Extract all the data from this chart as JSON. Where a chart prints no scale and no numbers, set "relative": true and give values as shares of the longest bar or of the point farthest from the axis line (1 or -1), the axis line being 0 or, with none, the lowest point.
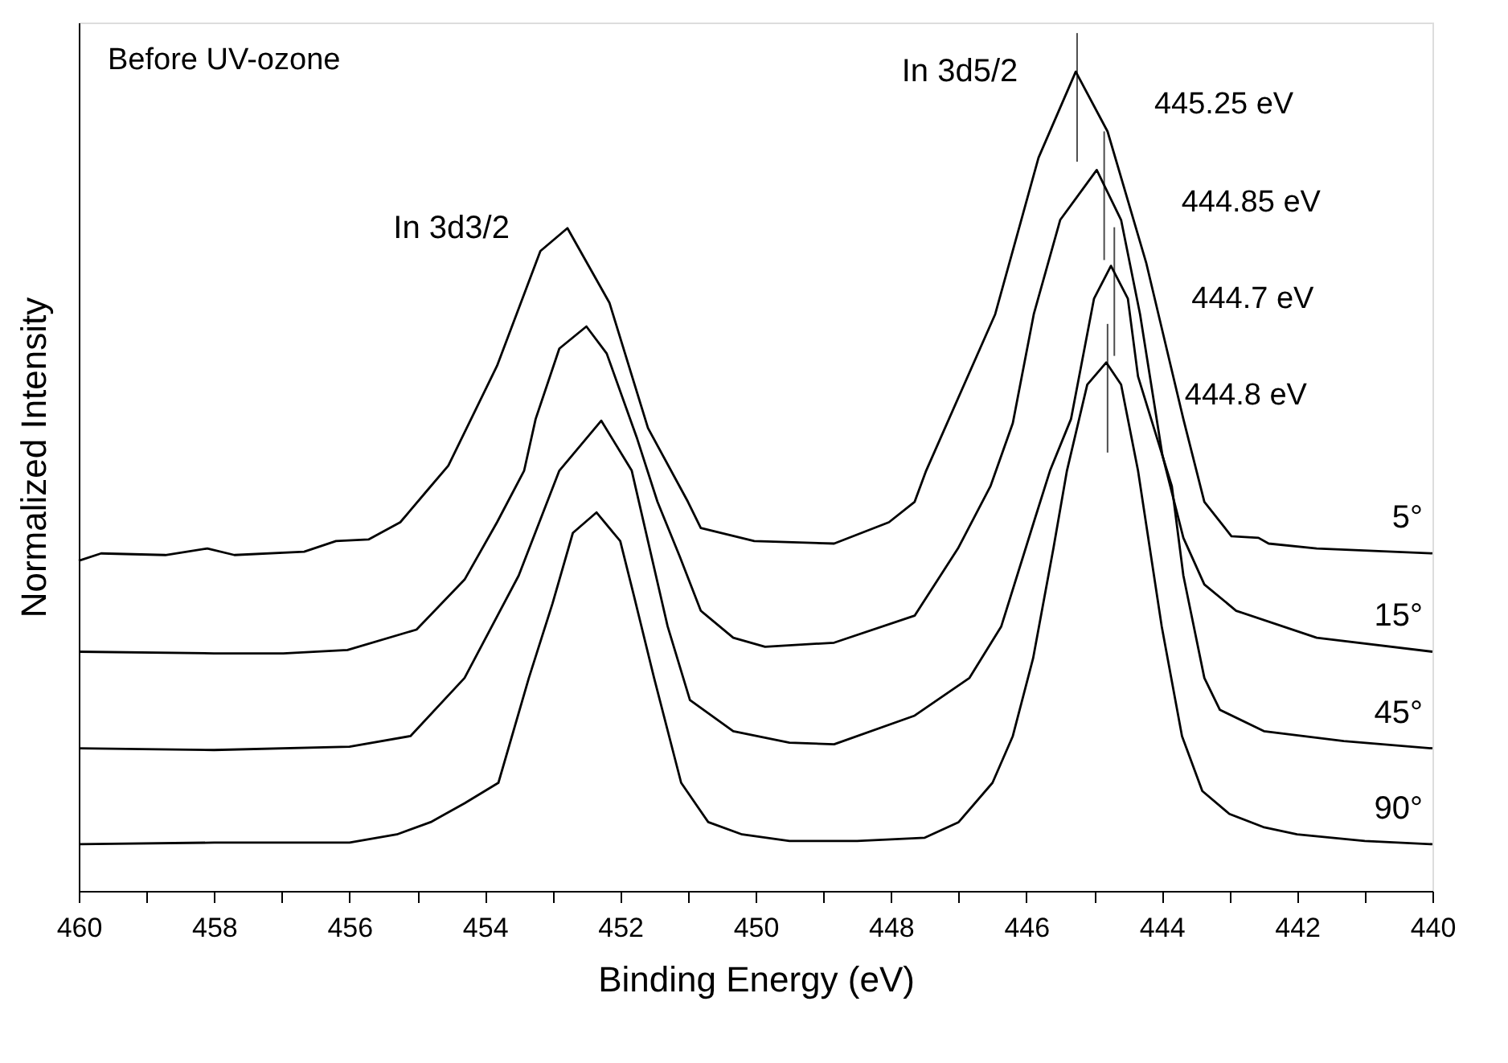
{
  "chart_data": {
    "type": "line",
    "xlabel": "Binding Energy (eV)",
    "ylabel": "Normalized Intensity",
    "relative": true,
    "legend": false,
    "grid": false,
    "line_style": "solid",
    "xlim": [
      460,
      440
    ],
    "xticks": [
      460,
      {
        "value": 459,
        "label": null
      },
      458,
      {
        "value": 457,
        "label": null
      },
      456,
      {
        "value": 455,
        "label": null
      },
      454,
      {
        "value": 453,
        "label": null
      },
      452,
      {
        "value": 451,
        "label": null
      },
      450,
      {
        "value": 449,
        "label": null
      },
      448,
      {
        "value": 447,
        "label": null
      },
      446,
      {
        "value": 445,
        "label": null
      },
      444,
      {
        "value": 443,
        "label": null
      },
      442,
      {
        "value": 441,
        "label": null
      },
      440
    ],
    "series": [
      {
        "name": "5°",
        "color": "#000000",
        "x": [
          460,
          459.67,
          458.72,
          458.1,
          457.7,
          456.67,
          456.2,
          455.72,
          455.25,
          454.85,
          454.54,
          453.82,
          453.18,
          452.78,
          452.16,
          451.59,
          451.0,
          450.81,
          450.02,
          448.84,
          448.03,
          447.65,
          447.48,
          446.46,
          445.82,
          445.27,
          444.8,
          444.23,
          443.68,
          443.37,
          442.97,
          442.57,
          442.42,
          441.71,
          440
        ],
        "values": [
          0.403,
          0.412,
          0.41,
          0.418,
          0.41,
          0.414,
          0.427,
          0.429,
          0.45,
          0.489,
          0.519,
          0.641,
          0.781,
          0.809,
          0.718,
          0.565,
          0.475,
          0.443,
          0.427,
          0.424,
          0.45,
          0.475,
          0.513,
          0.704,
          0.895,
          1,
          0.927,
          0.767,
          0.576,
          0.475,
          0.433,
          0.431,
          0.424,
          0.418,
          0.412
        ]
      },
      {
        "name": "15°",
        "color": "#000000",
        "x": [
          460,
          458,
          456.98,
          456.03,
          455.01,
          454.3,
          453.82,
          453.42,
          453.25,
          452.9,
          452.5,
          452.2,
          451.75,
          451.45,
          451.12,
          450.81,
          450.33,
          449.86,
          448.84,
          447.65,
          447.01,
          446.53,
          446.2,
          445.89,
          445.5,
          444.96,
          444.6,
          444.32,
          443.99,
          443.68,
          443.37,
          442.9,
          441.71,
          440
        ],
        "values": [
          0.292,
          0.29,
          0.29,
          0.294,
          0.319,
          0.38,
          0.45,
          0.513,
          0.576,
          0.662,
          0.689,
          0.656,
          0.552,
          0.475,
          0.408,
          0.342,
          0.309,
          0.298,
          0.303,
          0.336,
          0.418,
          0.494,
          0.571,
          0.704,
          0.819,
          0.88,
          0.819,
          0.704,
          0.532,
          0.431,
          0.374,
          0.342,
          0.309,
          0.292
        ]
      },
      {
        "name": "45°",
        "color": "#000000",
        "x": [
          460,
          458,
          456,
          455.1,
          454.3,
          453.5,
          452.9,
          452.28,
          451.83,
          451.3,
          450.97,
          450.33,
          449.5,
          448.84,
          447.65,
          446.84,
          446.37,
          445.89,
          445.65,
          445.34,
          445.0,
          444.75,
          444.5,
          444.35,
          444.1,
          443.85,
          443.68,
          443.37,
          443.14,
          442.49,
          441.31,
          440
        ],
        "values": [
          0.174,
          0.172,
          0.176,
          0.189,
          0.26,
          0.385,
          0.513,
          0.574,
          0.513,
          0.323,
          0.233,
          0.195,
          0.181,
          0.179,
          0.214,
          0.26,
          0.323,
          0.45,
          0.513,
          0.576,
          0.723,
          0.763,
          0.723,
          0.628,
          0.561,
          0.494,
          0.385,
          0.26,
          0.221,
          0.195,
          0.183,
          0.174
        ]
      },
      {
        "name": "90°",
        "color": "#000000",
        "x": [
          460,
          458,
          456,
          455.3,
          454.8,
          454.3,
          453.8,
          453.35,
          453,
          452.7,
          452.35,
          452.0,
          451.8,
          451.5,
          451.1,
          450.7,
          450.2,
          449.5,
          448.5,
          447.5,
          447,
          446.5,
          446.2,
          445.9,
          445.6,
          445.4,
          445.1,
          444.82,
          444.6,
          444.35,
          444.0,
          443.7,
          443.4,
          443,
          442.5,
          442,
          441,
          440
        ],
        "values": [
          0.057,
          0.059,
          0.059,
          0.069,
          0.084,
          0.107,
          0.132,
          0.26,
          0.351,
          0.437,
          0.462,
          0.427,
          0.361,
          0.26,
          0.132,
          0.084,
          0.069,
          0.061,
          0.061,
          0.065,
          0.084,
          0.132,
          0.189,
          0.284,
          0.418,
          0.513,
          0.618,
          0.645,
          0.618,
          0.513,
          0.323,
          0.189,
          0.122,
          0.094,
          0.078,
          0.069,
          0.061,
          0.057
        ]
      }
    ],
    "annotations": [
      "Before UV-ozone",
      {
        "text": "In 3d3/2",
        "x": 452.78,
        "y": 0.809
      },
      {
        "text": "In 3d5/2",
        "x": 445.27,
        "y": 1
      }
    ],
    "ref_lines": [
      {
        "axis": "x",
        "value": 445.25,
        "label": "445.25 eV"
      },
      {
        "axis": "x",
        "value": 444.85,
        "label": "444.85 eV"
      },
      {
        "axis": "x",
        "value": 444.7,
        "label": "444.7 eV"
      },
      {
        "axis": "x",
        "value": 444.8,
        "label": "444.8 eV"
      }
    ]
  }
}
